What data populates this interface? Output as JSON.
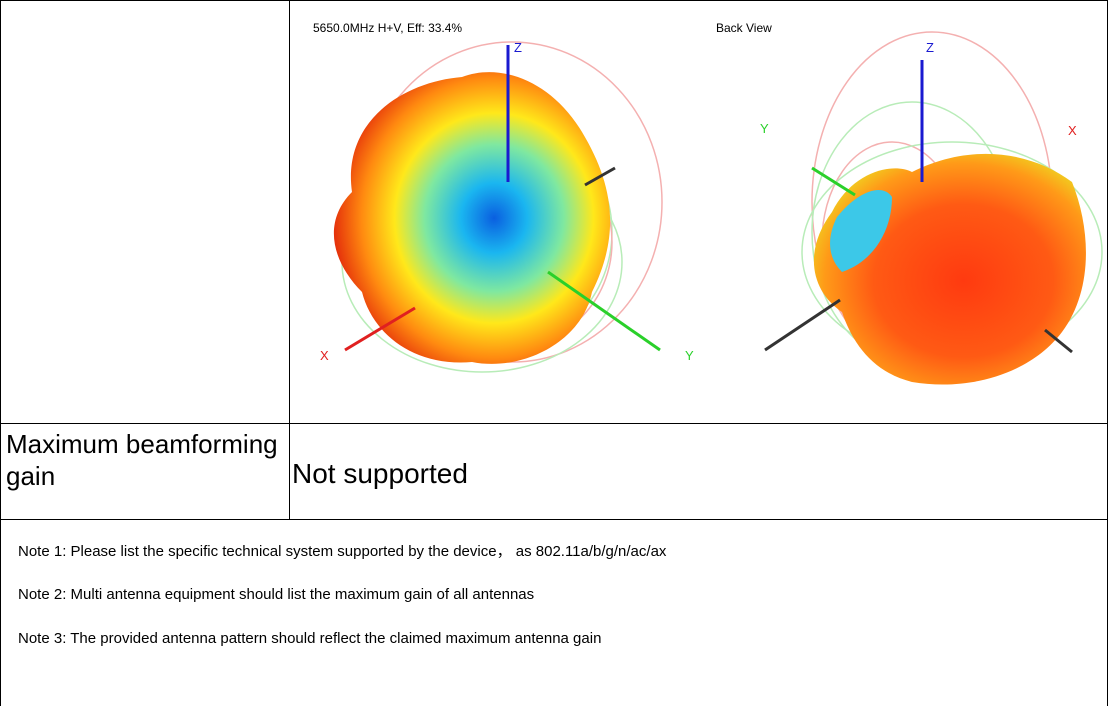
{
  "table": {
    "rows": [
      {
        "pattern": {
          "caption": "5650.0MHz H+V, Eff: 33.4%",
          "view_label": "Back View",
          "front_axes": [
            "Z",
            "X",
            "Y"
          ],
          "back_axes": [
            "Z",
            "Y",
            "X"
          ]
        }
      },
      {
        "label": "Maximum beamforming gain",
        "value": "Not supported"
      }
    ]
  },
  "notes": [
    "Note 1: Please list the specific technical system supported by the device， as 802.11a/b/g/n/ac/ax",
    "Note 2: Multi antenna equipment should list the maximum gain of all antennas",
    "Note 3: The provided antenna pattern should reflect the claimed maximum antenna gain"
  ]
}
